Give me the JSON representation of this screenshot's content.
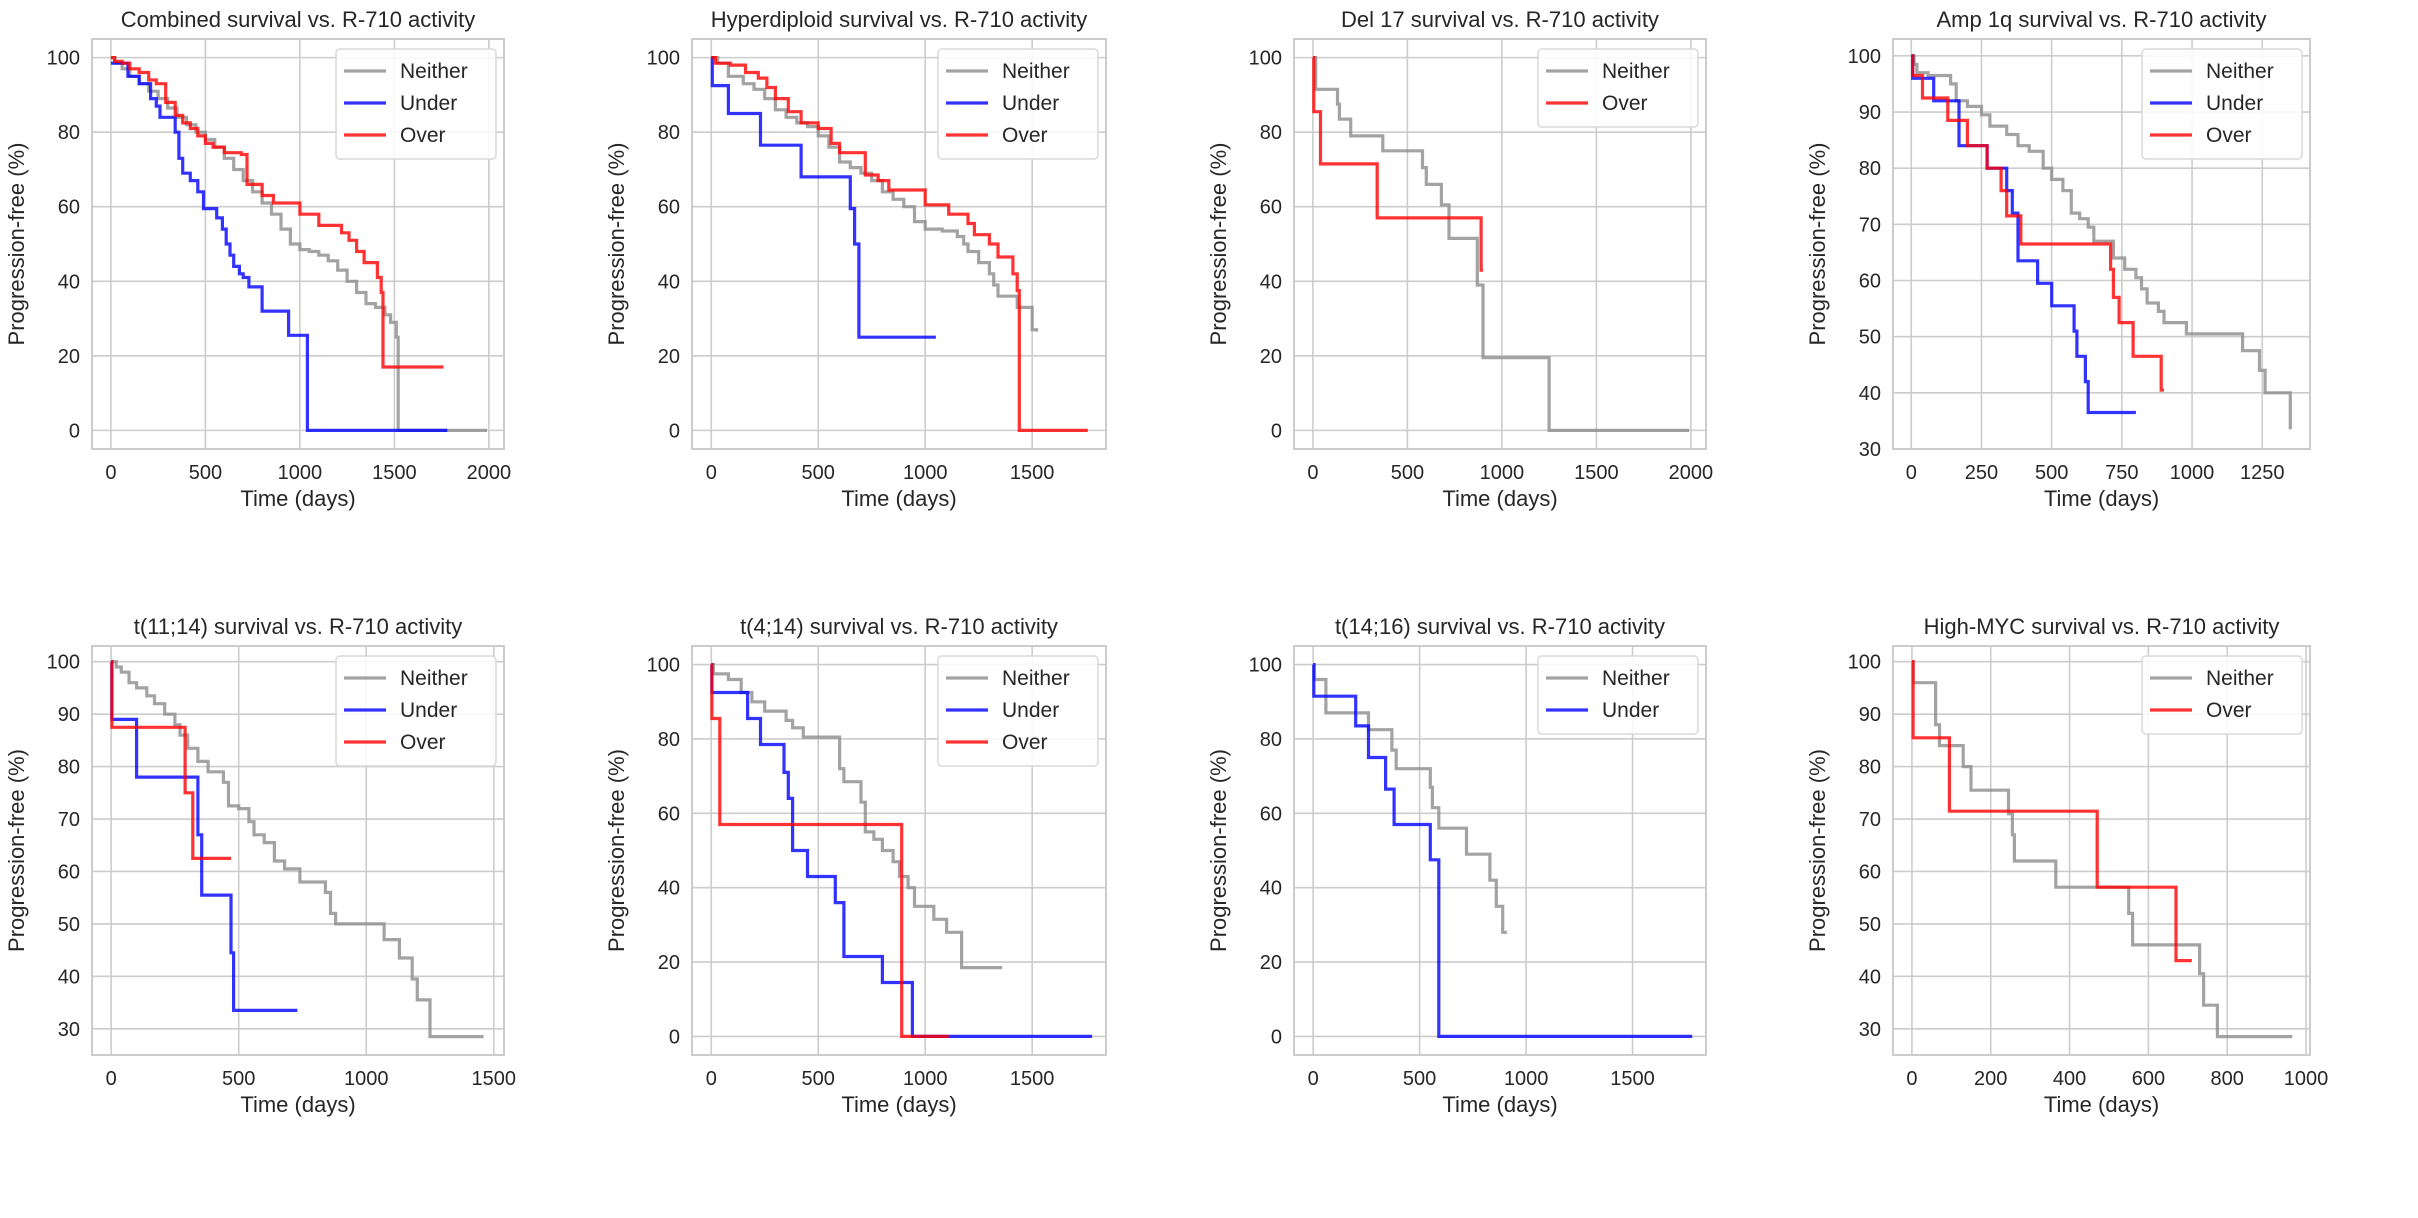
{
  "figure": {
    "colors": {
      "Neither": "#8c8c8c",
      "Under": "#0000ff",
      "Over": "#ff0000"
    },
    "series_opacity": 0.8
  },
  "chart_data": [
    {
      "type": "line",
      "title": "Combined survival vs. R-710 activity",
      "xlabel": "Time (days)",
      "ylabel": "Progression-free (%)",
      "xlim": [
        -100,
        2080
      ],
      "ylim": [
        -5,
        105
      ],
      "xticks": [
        0,
        500,
        1000,
        1500,
        2000
      ],
      "yticks": [
        0,
        20,
        40,
        60,
        80,
        100
      ],
      "grid": true,
      "legend": "top-right",
      "series": [
        {
          "name": "Neither",
          "x": [
            0,
            20,
            60,
            100,
            150,
            200,
            250,
            300,
            350,
            400,
            450,
            500,
            550,
            600,
            650,
            700,
            750,
            800,
            850,
            900,
            950,
            1000,
            1050,
            1100,
            1150,
            1200,
            1250,
            1300,
            1350,
            1400,
            1450,
            1480,
            1510,
            1520,
            1990
          ],
          "y": [
            100,
            98.5,
            97,
            95,
            93,
            91,
            89,
            86.5,
            84,
            82,
            80,
            78,
            76,
            73,
            70,
            67,
            64,
            61,
            58,
            54,
            50,
            48.5,
            48,
            47,
            45.5,
            43,
            40,
            37,
            34,
            33,
            31,
            29,
            25,
            0,
            0
          ]
        },
        {
          "name": "Under",
          "x": [
            0,
            75,
            90,
            150,
            210,
            240,
            260,
            340,
            360,
            380,
            420,
            460,
            490,
            560,
            590,
            610,
            630,
            650,
            680,
            700,
            730,
            800,
            940,
            1040,
            1780
          ],
          "y": [
            98.5,
            98.5,
            95,
            93,
            89,
            87,
            84,
            80,
            73,
            69,
            67,
            64,
            59.5,
            57,
            54,
            50,
            47,
            44,
            42,
            41,
            38.5,
            32,
            25.5,
            0,
            0
          ]
        },
        {
          "name": "Over",
          "x": [
            0,
            20,
            60,
            100,
            150,
            200,
            240,
            290,
            340,
            380,
            420,
            460,
            500,
            540,
            600,
            690,
            720,
            800,
            860,
            1000,
            1100,
            1220,
            1260,
            1300,
            1340,
            1410,
            1430,
            1440,
            1760
          ],
          "y": [
            100,
            99,
            98.5,
            97,
            96,
            94,
            93,
            88,
            84.5,
            82.5,
            81,
            79,
            77,
            76,
            74.5,
            74,
            66,
            63,
            61,
            58,
            55,
            53,
            51,
            48,
            45,
            41,
            37,
            17,
            17
          ]
        }
      ]
    },
    {
      "type": "line",
      "title": "Hyperdiploid survival vs. R-710 activity",
      "xlabel": "Time (days)",
      "ylabel": "Progression-free (%)",
      "xlim": [
        -90,
        1845
      ],
      "ylim": [
        -5,
        105
      ],
      "xticks": [
        0,
        500,
        1000,
        1500
      ],
      "yticks": [
        0,
        20,
        40,
        60,
        80,
        100
      ],
      "grid": true,
      "legend": "top-right",
      "series": [
        {
          "name": "Neither",
          "x": [
            0,
            30,
            80,
            150,
            200,
            250,
            300,
            350,
            400,
            450,
            500,
            550,
            600,
            650,
            700,
            750,
            800,
            850,
            900,
            950,
            1000,
            1080,
            1150,
            1180,
            1200,
            1250,
            1300,
            1320,
            1340,
            1430,
            1500,
            1520
          ],
          "y": [
            100,
            98.5,
            95,
            93,
            91.5,
            89,
            86,
            84,
            82.5,
            81.5,
            79,
            76,
            72,
            70.5,
            69,
            67,
            64,
            62,
            60,
            56,
            54,
            53.5,
            52,
            50,
            48,
            45,
            42,
            39,
            36,
            33,
            27,
            26.5
          ]
        },
        {
          "name": "Under",
          "x": [
            0,
            5,
            80,
            230,
            420,
            650,
            670,
            690,
            1050
          ],
          "y": [
            100,
            92.5,
            85,
            76.5,
            68,
            59.5,
            50,
            25,
            25
          ]
        },
        {
          "name": "Over",
          "x": [
            0,
            20,
            90,
            160,
            220,
            260,
            300,
            360,
            420,
            500,
            560,
            600,
            700,
            720,
            780,
            830,
            1000,
            1110,
            1200,
            1230,
            1300,
            1340,
            1410,
            1430,
            1440,
            1760
          ],
          "y": [
            100,
            98.5,
            98,
            96,
            94.5,
            92,
            89,
            85.5,
            82.5,
            81,
            77,
            74.5,
            74.5,
            68.5,
            67,
            64.5,
            60.5,
            58,
            55.5,
            52.5,
            50,
            46.5,
            42,
            37.5,
            0,
            0
          ]
        }
      ]
    },
    {
      "type": "line",
      "title": "Del 17 survival vs. R-710 activity",
      "xlabel": "Time (days)",
      "ylabel": "Progression-free (%)",
      "xlim": [
        -100,
        2080
      ],
      "ylim": [
        -5,
        105
      ],
      "xticks": [
        0,
        500,
        1000,
        1500,
        2000
      ],
      "yticks": [
        0,
        20,
        40,
        60,
        80,
        100
      ],
      "grid": true,
      "legend": "top-right",
      "series": [
        {
          "name": "Neither",
          "x": [
            0,
            15,
            130,
            140,
            200,
            370,
            580,
            600,
            680,
            720,
            870,
            900,
            1250,
            1990
          ],
          "y": [
            100,
            91.5,
            87.5,
            83.5,
            79,
            75,
            70.5,
            66,
            60.5,
            51.5,
            39,
            19.5,
            0,
            0
          ]
        },
        {
          "name": "Over",
          "x": [
            0,
            5,
            40,
            340,
            890,
            900
          ],
          "y": [
            100,
            85.5,
            71.5,
            57,
            43,
            43
          ]
        }
      ]
    },
    {
      "type": "line",
      "title": "Amp 1q survival vs. R-710 activity",
      "xlabel": "Time (days)",
      "ylabel": "Progression-free (%)",
      "xlim": [
        -65,
        1420
      ],
      "ylim": [
        30,
        103
      ],
      "xticks": [
        0,
        250,
        500,
        750,
        1000,
        1250
      ],
      "yticks": [
        30,
        40,
        50,
        60,
        70,
        80,
        90,
        100
      ],
      "grid": true,
      "legend": "top-right",
      "series": [
        {
          "name": "Neither",
          "x": [
            0,
            10,
            20,
            60,
            140,
            160,
            200,
            250,
            280,
            340,
            380,
            420,
            470,
            500,
            540,
            570,
            600,
            630,
            650,
            720,
            760,
            800,
            820,
            840,
            880,
            900,
            980,
            1180,
            1240,
            1260,
            1350
          ],
          "y": [
            100,
            98.5,
            97,
            96.5,
            95,
            92,
            91,
            89.5,
            87.5,
            86,
            84,
            83,
            80,
            78,
            76,
            72,
            71,
            69.5,
            67,
            64,
            62,
            60.5,
            58.5,
            56,
            54.5,
            52.5,
            50.5,
            47.5,
            44,
            40,
            33.5
          ]
        },
        {
          "name": "Under",
          "x": [
            0,
            5,
            80,
            170,
            270,
            340,
            360,
            380,
            450,
            500,
            580,
            590,
            620,
            630,
            800
          ],
          "y": [
            100,
            96,
            92,
            84,
            80,
            76,
            72,
            63.5,
            59.5,
            55.5,
            51,
            46.5,
            42,
            36.5,
            36.5
          ]
        },
        {
          "name": "Over",
          "x": [
            0,
            5,
            40,
            130,
            200,
            270,
            320,
            340,
            390,
            710,
            720,
            740,
            790,
            890,
            900
          ],
          "y": [
            100,
            96.5,
            92.5,
            88.5,
            84,
            80,
            76,
            71.5,
            66.5,
            62,
            57,
            52.5,
            46.5,
            40.5,
            40.5
          ]
        }
      ]
    },
    {
      "type": "line",
      "title": "t(11;14) survival vs. R-710 activity",
      "xlabel": "Time (days)",
      "ylabel": "Progression-free (%)",
      "xlim": [
        -75,
        1540
      ],
      "ylim": [
        25,
        103
      ],
      "xticks": [
        0,
        500,
        1000,
        1500
      ],
      "yticks": [
        30,
        40,
        50,
        60,
        70,
        80,
        90,
        100
      ],
      "grid": true,
      "legend": "top-right",
      "series": [
        {
          "name": "Neither",
          "x": [
            0,
            20,
            40,
            70,
            100,
            140,
            170,
            210,
            250,
            270,
            300,
            340,
            380,
            440,
            460,
            500,
            540,
            560,
            600,
            640,
            680,
            740,
            840,
            860,
            880,
            1070,
            1130,
            1180,
            1200,
            1250,
            1460
          ],
          "y": [
            100,
            99,
            98,
            96,
            95,
            93.5,
            92,
            90,
            88,
            86,
            83.5,
            81,
            79,
            77,
            72.5,
            72,
            69.5,
            67,
            65.5,
            62,
            60.5,
            58,
            56,
            52,
            50,
            47,
            43.5,
            39.5,
            35.5,
            28.5,
            28.5
          ]
        },
        {
          "name": "Under",
          "x": [
            0,
            3,
            100,
            340,
            355,
            470,
            480,
            730
          ],
          "y": [
            100,
            89,
            78,
            67,
            55.5,
            44.5,
            33.5,
            33.5
          ]
        },
        {
          "name": "Over",
          "x": [
            0,
            3,
            290,
            320,
            470
          ],
          "y": [
            100,
            87.5,
            75,
            62.5,
            62.5
          ]
        }
      ]
    },
    {
      "type": "line",
      "title": "t(4;14) survival vs. R-710 activity",
      "xlabel": "Time (days)",
      "ylabel": "Progression-free (%)",
      "xlim": [
        -90,
        1845
      ],
      "ylim": [
        -5,
        105
      ],
      "xticks": [
        0,
        500,
        1000,
        1500
      ],
      "yticks": [
        0,
        20,
        40,
        60,
        80,
        100
      ],
      "grid": true,
      "legend": "top-right",
      "series": [
        {
          "name": "Neither",
          "x": [
            0,
            10,
            80,
            140,
            190,
            250,
            350,
            380,
            430,
            600,
            620,
            700,
            720,
            760,
            800,
            850,
            880,
            920,
            950,
            1040,
            1100,
            1170,
            1360
          ],
          "y": [
            100,
            97.5,
            96,
            92.5,
            90,
            87.5,
            85,
            83,
            80.5,
            72,
            68.5,
            63,
            55,
            53,
            50,
            47,
            43,
            40,
            35,
            31.5,
            28,
            18.5,
            18.5
          ]
        },
        {
          "name": "Under",
          "x": [
            0,
            3,
            170,
            230,
            340,
            360,
            380,
            450,
            580,
            620,
            800,
            940,
            1780
          ],
          "y": [
            100,
            92.5,
            85.5,
            78.5,
            71,
            64,
            50,
            43,
            36,
            21.5,
            14.5,
            0,
            0
          ]
        },
        {
          "name": "Over",
          "x": [
            0,
            3,
            40,
            890,
            1110
          ],
          "y": [
            100,
            85.5,
            57,
            0,
            0
          ]
        }
      ]
    },
    {
      "type": "line",
      "title": "t(14;16) survival vs. R-710 activity",
      "xlabel": "Time (days)",
      "ylabel": "Progression-free (%)",
      "xlim": [
        -90,
        1845
      ],
      "ylim": [
        -5,
        105
      ],
      "xticks": [
        0,
        500,
        1000,
        1500
      ],
      "yticks": [
        0,
        20,
        40,
        60,
        80,
        100
      ],
      "grid": true,
      "legend": "top-right",
      "series": [
        {
          "name": "Neither",
          "x": [
            0,
            5,
            60,
            260,
            370,
            390,
            550,
            560,
            590,
            720,
            830,
            860,
            890,
            910
          ],
          "y": [
            100,
            96,
            87,
            82.5,
            77,
            72,
            67,
            61.5,
            56,
            49,
            42,
            35,
            28,
            28
          ]
        },
        {
          "name": "Under",
          "x": [
            0,
            3,
            200,
            260,
            340,
            380,
            550,
            590,
            1780
          ],
          "y": [
            100,
            91.5,
            83.5,
            75,
            66.5,
            57,
            47.5,
            0,
            0
          ]
        }
      ]
    },
    {
      "type": "line",
      "title": "High-MYC survival vs. R-710 activity",
      "xlabel": "Time (days)",
      "ylabel": "Progression-free (%)",
      "xlim": [
        -48,
        1010
      ],
      "ylim": [
        25,
        103
      ],
      "xticks": [
        0,
        200,
        400,
        600,
        800,
        1000
      ],
      "yticks": [
        30,
        40,
        50,
        60,
        70,
        80,
        90,
        100
      ],
      "grid": true,
      "legend": "top-right",
      "series": [
        {
          "name": "Neither",
          "x": [
            0,
            3,
            60,
            70,
            130,
            150,
            245,
            255,
            260,
            365,
            550,
            560,
            730,
            740,
            775,
            965
          ],
          "y": [
            100,
            96,
            88,
            84,
            80,
            75.5,
            71,
            67,
            62,
            57,
            52,
            46,
            40.5,
            34.5,
            28.5,
            28.5
          ]
        },
        {
          "name": "Over",
          "x": [
            0,
            3,
            95,
            470,
            670,
            710
          ],
          "y": [
            100,
            85.5,
            71.5,
            57,
            43,
            43
          ]
        }
      ]
    }
  ]
}
